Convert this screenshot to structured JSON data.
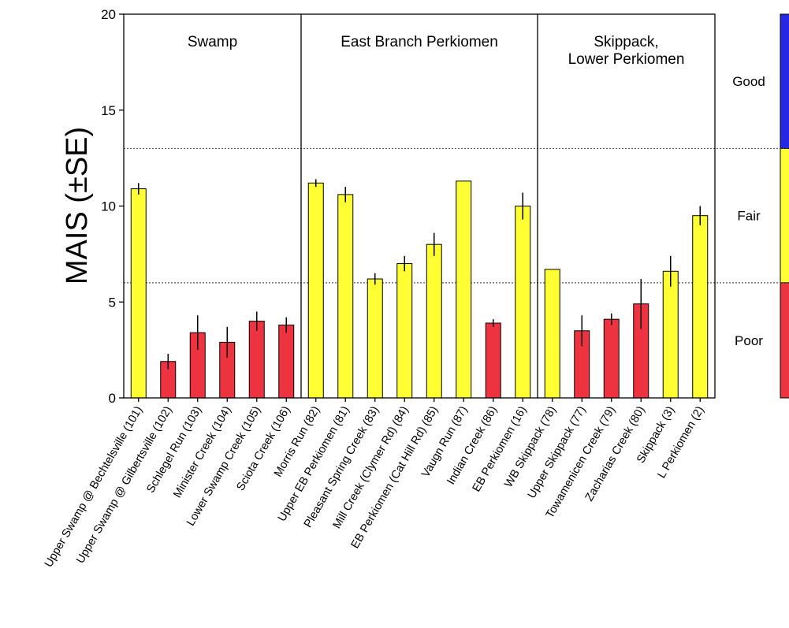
{
  "chart_data": {
    "type": "bar",
    "ylabel": "MAIS (±SE)",
    "ylim": [
      0,
      20
    ],
    "yticks": [
      0,
      5,
      10,
      15,
      20
    ],
    "categories": [
      "Upper Swamp @ Bechtelsville (101)",
      "Upper Swamp @ Gilbertsville (102)",
      "Schlegel Run (103)",
      "Minister Creek (104)",
      "Lower Swamp Creek (105)",
      "Sciota Creek (106)",
      "Morris Run (82)",
      "Upper EB Perkiomen (81)",
      "Pleasant Spring Creek (83)",
      "Mill Creek (Clymer Rd) (84)",
      "EB Perkiomen (Cat Hill Rd) (85)",
      "Vaugn Run (87)",
      "Indian Creek (86)",
      "EB Perkiomen (16)",
      "WB Skippack (78)",
      "Upper Skippack (77)",
      "Towamenicen Creek (79)",
      "Zacharias Creek (80)",
      "Skippack (3)",
      "L Perkiomen (2)"
    ],
    "values": [
      10.9,
      1.9,
      3.4,
      2.9,
      4.0,
      3.8,
      11.2,
      10.6,
      6.2,
      7.0,
      8.0,
      11.3,
      3.9,
      10.0,
      6.7,
      3.5,
      4.1,
      4.9,
      6.6,
      9.5
    ],
    "se": [
      0.3,
      0.4,
      0.9,
      0.8,
      0.5,
      0.4,
      0.2,
      0.4,
      0.3,
      0.4,
      0.6,
      0.0,
      0.2,
      0.7,
      0.0,
      0.8,
      0.3,
      1.3,
      0.8,
      0.5
    ],
    "bar_rating": [
      "fair",
      "poor",
      "poor",
      "poor",
      "poor",
      "poor",
      "fair",
      "fair",
      "fair",
      "fair",
      "fair",
      "fair",
      "poor",
      "fair",
      "fair",
      "poor",
      "poor",
      "poor",
      "fair",
      "fair"
    ],
    "groups": [
      {
        "label_lines": [
          "Swamp"
        ],
        "start": 0,
        "end": 5
      },
      {
        "label_lines": [
          "East Branch Perkiomen"
        ],
        "start": 6,
        "end": 13
      },
      {
        "label_lines": [
          "Skippack,",
          "Lower Perkiomen"
        ],
        "start": 14,
        "end": 19
      }
    ],
    "thresholds": [
      6.0,
      13.0
    ],
    "rating_bands": [
      {
        "label": "Good",
        "from": 13.0,
        "to": 20,
        "color": "#2626e6"
      },
      {
        "label": "Fair",
        "from": 6.0,
        "to": 13.0,
        "color": "#ffff33"
      },
      {
        "label": "Poor",
        "from": 0,
        "to": 6.0,
        "color": "#ee3340"
      }
    ],
    "colors": {
      "fair": "#ffff33",
      "poor": "#ee3340",
      "edge": "#000000"
    }
  }
}
